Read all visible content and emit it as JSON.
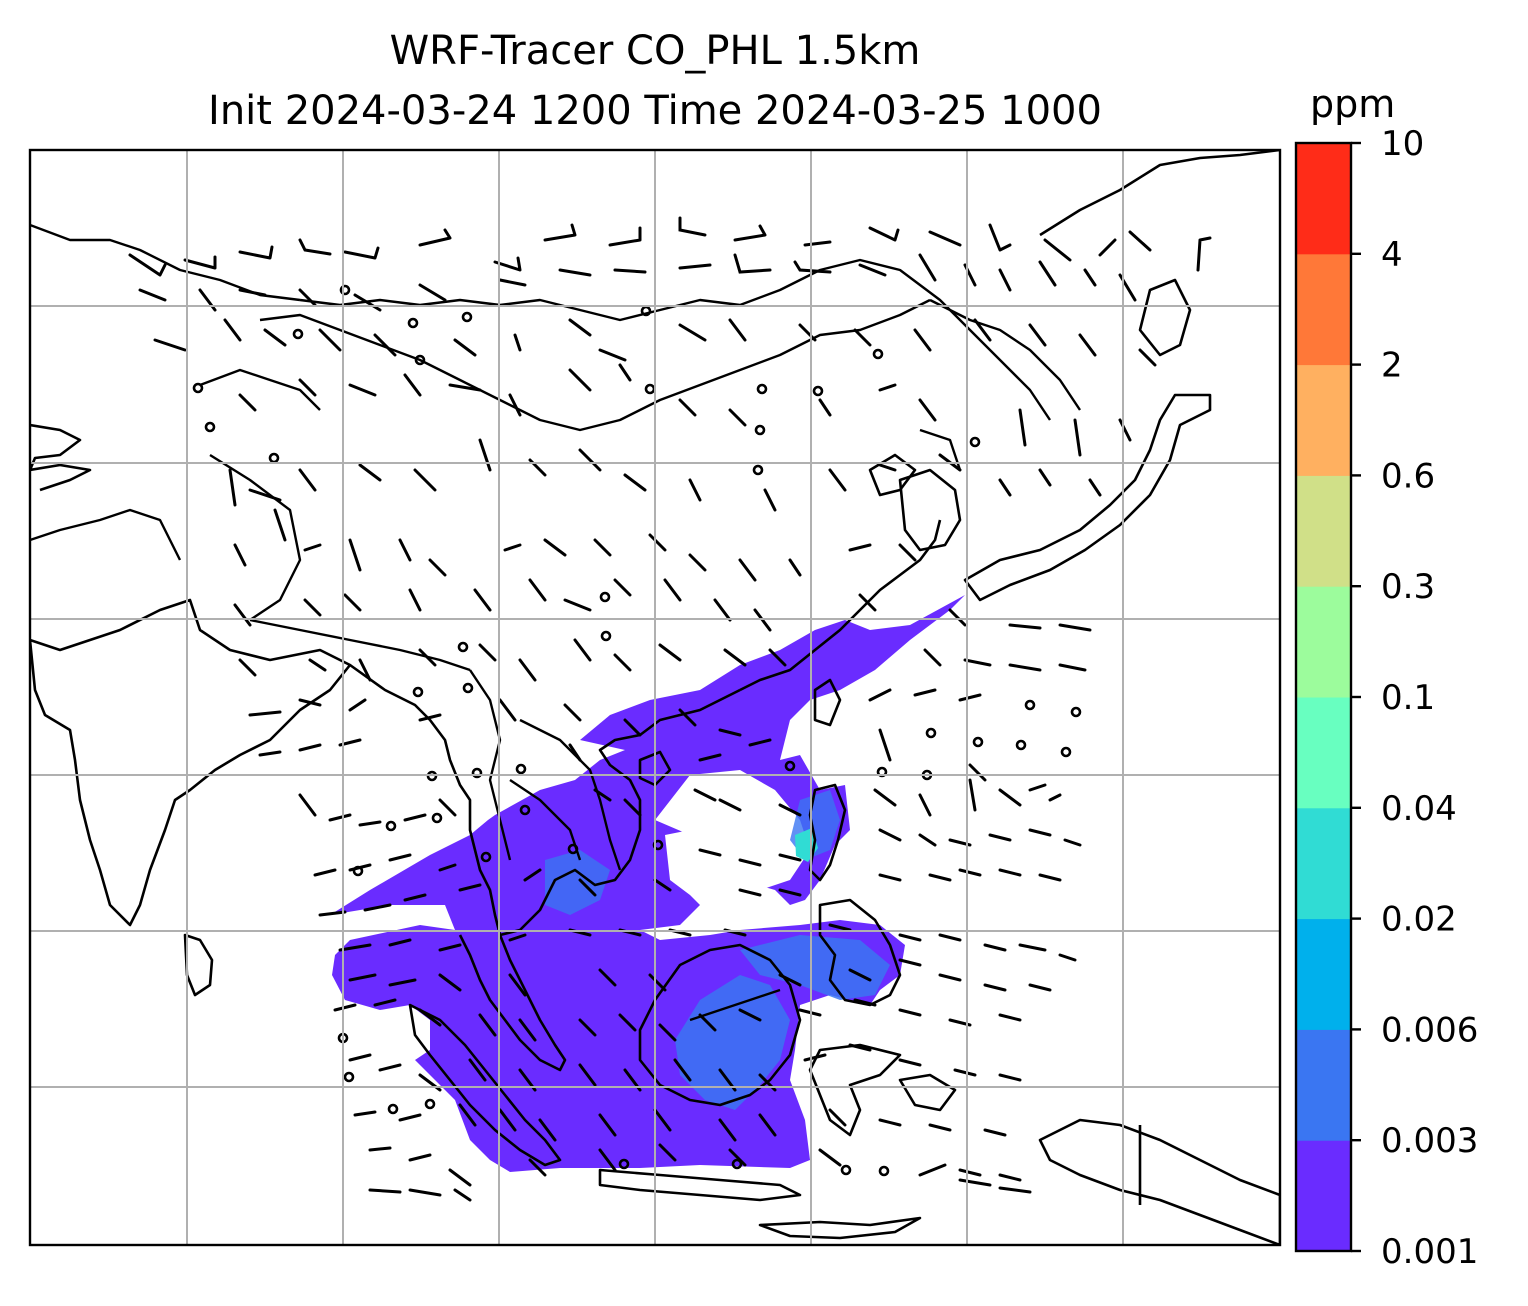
{
  "title_line1": "WRF-Tracer CO_PHL 1.5km",
  "title_line2": "Init 2024-03-24 1200 Time 2024-03-25 1000",
  "colorbar": {
    "unit": "ppm",
    "levels": [
      "0.001",
      "0.003",
      "0.006",
      "0.02",
      "0.04",
      "0.1",
      "0.3",
      "0.6",
      "2",
      "4",
      "10"
    ],
    "colors": [
      "#6a2cff",
      "#3a76f2",
      "#00b0ec",
      "#30dcd4",
      "#68ffc0",
      "#9cfc9c",
      "#d0e088",
      "#ffb060",
      "#ff7838",
      "#ff2c18"
    ]
  },
  "map": {
    "gridlines": true,
    "coastlines": true,
    "wind_barbs": true,
    "plume_color": "#6a2cff",
    "plume_inner_color": "#3a76f2",
    "plume_peak_color": "#30dcd4"
  }
}
